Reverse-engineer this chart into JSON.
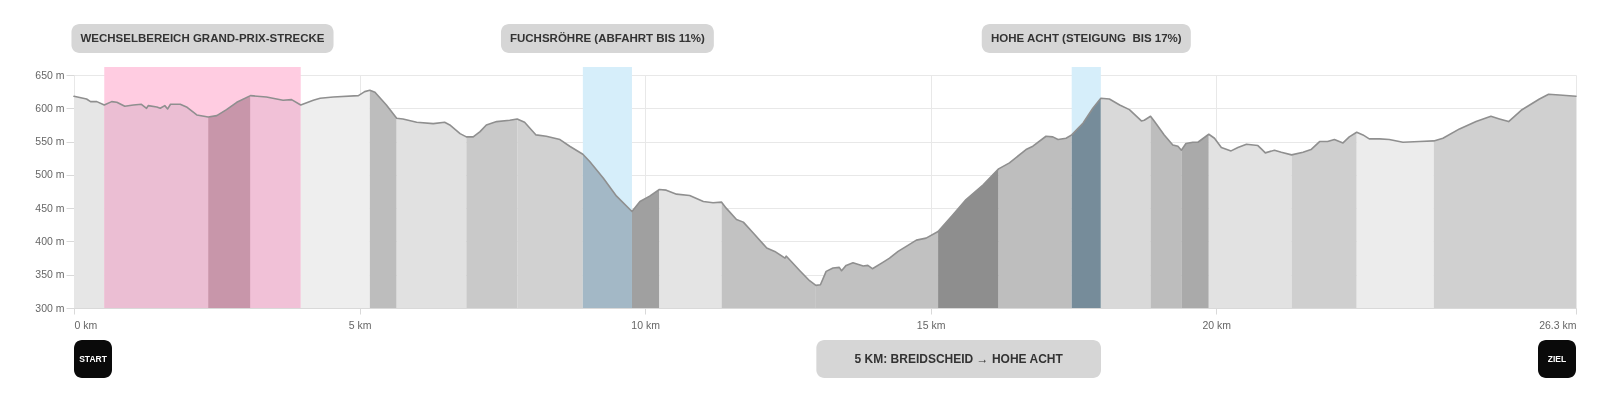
{
  "chart_data": {
    "type": "area",
    "xlim": [
      0,
      26.3
    ],
    "ylim": [
      300,
      650
    ],
    "xticks": [
      {
        "value": 0,
        "label": "0 km"
      },
      {
        "value": 5,
        "label": "5 km"
      },
      {
        "value": 10,
        "label": "10 km"
      },
      {
        "value": 15,
        "label": "15 km"
      },
      {
        "value": 20,
        "label": "20 km"
      },
      {
        "value": 26.3,
        "label": "26.3 km"
      }
    ],
    "yticks": [
      {
        "value": 300,
        "label": "300 m"
      },
      {
        "value": 350,
        "label": "350 m"
      },
      {
        "value": 400,
        "label": "400 m"
      },
      {
        "value": 450,
        "label": "450 m"
      },
      {
        "value": 500,
        "label": "500 m"
      },
      {
        "value": 550,
        "label": "550 m"
      },
      {
        "value": 600,
        "label": "600 m"
      },
      {
        "value": 650,
        "label": "650 m"
      }
    ],
    "grid": true,
    "series": [
      {
        "color": "#e6e6e6",
        "x": [
          0,
          0.22,
          0.29,
          0.4,
          0.53
        ],
        "values": [
          618,
          614,
          610,
          610,
          605
        ]
      },
      {
        "color": "#ebbed3",
        "x": [
          0.53,
          0.66,
          0.75,
          0.89,
          1.04,
          1.18,
          1.27,
          1.3,
          1.45,
          1.51,
          1.59,
          1.64,
          1.69,
          1.86,
          1.97,
          2.15,
          2.35
        ],
        "values": [
          605,
          610,
          609,
          603,
          605,
          606,
          600,
          604,
          602,
          600,
          604,
          599,
          606,
          606,
          602,
          590,
          587
        ]
      },
      {
        "color": "#c896aa",
        "x": [
          2.35,
          2.5,
          2.67,
          2.85,
          3.09
        ],
        "values": [
          587,
          589,
          598,
          609,
          619
        ]
      },
      {
        "color": "#f1c1d7",
        "x": [
          3.09,
          3.37,
          3.66,
          3.81,
          3.97
        ],
        "values": [
          619,
          617,
          612,
          613,
          605
        ]
      },
      {
        "color": "#eeeeee",
        "x": [
          3.97,
          4.19,
          4.31,
          4.54,
          4.98,
          5.09,
          5.18
        ],
        "values": [
          605,
          612,
          615,
          617,
          619,
          625,
          627
        ]
      },
      {
        "color": "#bdbdbd",
        "x": [
          5.18,
          5.27,
          5.47,
          5.65
        ],
        "values": [
          627,
          624,
          605,
          585
        ]
      },
      {
        "color": "#e1e1e1",
        "x": [
          5.65,
          5.76,
          6.0,
          6.29,
          6.49,
          6.58,
          6.76,
          6.87
        ],
        "values": [
          585,
          584,
          579,
          577,
          579,
          575,
          562,
          557
        ]
      },
      {
        "color": "#c9c9c9",
        "x": [
          6.87,
          6.99,
          7.11,
          7.22,
          7.4,
          7.63,
          7.76
        ],
        "values": [
          557,
          557,
          565,
          575,
          580,
          582,
          584
        ]
      },
      {
        "color": "#d1d1d1",
        "x": [
          7.76,
          7.89,
          8.09,
          8.27,
          8.51,
          8.68,
          8.91
        ],
        "values": [
          584,
          579,
          560,
          558,
          553,
          543,
          531
        ]
      },
      {
        "color": "#a3b8c6",
        "x": [
          8.91,
          9.03,
          9.27,
          9.5,
          9.77
        ],
        "values": [
          531,
          520,
          495,
          468,
          445
        ]
      },
      {
        "color": "#a0a0a0",
        "x": [
          9.77,
          9.91,
          10.08,
          10.25
        ],
        "values": [
          445,
          460,
          468,
          478
        ]
      },
      {
        "color": "#e4e4e4",
        "x": [
          10.25,
          10.37,
          10.55,
          10.78,
          11.02,
          11.19,
          11.34
        ],
        "values": [
          478,
          477,
          471,
          469,
          460,
          458,
          459
        ]
      },
      {
        "color": "#c2c2c2",
        "x": [
          11.34,
          11.42,
          11.6,
          11.72,
          11.89,
          12.13,
          12.27,
          12.45,
          12.47,
          12.71,
          12.88,
          12.99
        ],
        "values": [
          459,
          450,
          433,
          429,
          413,
          390,
          385,
          375,
          378,
          356,
          341,
          334
        ]
      },
      {
        "color": "#c1c1c1",
        "x": [
          12.99,
          13.07,
          13.17,
          13.29,
          13.4,
          13.44,
          13.52,
          13.64,
          13.82,
          13.9,
          13.98,
          14.17,
          14.28,
          14.43,
          14.58,
          14.75,
          14.92,
          15.13
        ],
        "values": [
          334,
          335,
          355,
          360,
          361,
          356,
          364,
          368,
          363,
          364,
          359,
          369,
          375,
          385,
          393,
          402,
          405,
          415
        ]
      },
      {
        "color": "#8e8e8e",
        "x": [
          15.13,
          15.39,
          15.62,
          15.92,
          16.19
        ],
        "values": [
          415,
          440,
          463,
          485,
          509
        ]
      },
      {
        "color": "#bebebe",
        "x": [
          16.19,
          16.38,
          16.67,
          16.79,
          17.02,
          17.14,
          17.23,
          17.37,
          17.47
        ],
        "values": [
          509,
          518,
          538,
          543,
          558,
          557,
          553,
          555,
          560
        ]
      },
      {
        "color": "#768c9a",
        "x": [
          17.47,
          17.67,
          17.84,
          17.98
        ],
        "values": [
          560,
          578,
          600,
          615
        ]
      },
      {
        "color": "#d9d9d9",
        "x": [
          17.98,
          18.13,
          18.31,
          18.48,
          18.69,
          18.74,
          18.85
        ],
        "values": [
          615,
          614,
          605,
          598,
          581,
          582,
          588
        ]
      },
      {
        "color": "#bdbdbd",
        "x": [
          18.85,
          18.92,
          19.09,
          19.24,
          19.33,
          19.39
        ],
        "values": [
          588,
          580,
          560,
          545,
          543,
          537
        ]
      },
      {
        "color": "#aaaaaa",
        "x": [
          19.39,
          19.47,
          19.59,
          19.68,
          19.87
        ],
        "values": [
          537,
          547,
          549,
          549,
          561
        ]
      },
      {
        "color": "#e2e2e2",
        "x": [
          19.87,
          19.97,
          20.09,
          20.26,
          20.38,
          20.53,
          20.73,
          20.79,
          20.86,
          21.02,
          21.14,
          21.32
        ],
        "values": [
          561,
          555,
          541,
          536,
          541,
          546,
          544,
          539,
          533,
          537,
          534,
          530
        ]
      },
      {
        "color": "#cfcfcf",
        "x": [
          21.32,
          21.52,
          21.66,
          21.81,
          21.95,
          22.07,
          22.22,
          22.33,
          22.46
        ],
        "values": [
          530,
          534,
          538,
          550,
          550,
          553,
          548,
          557,
          564
        ]
      },
      {
        "color": "#ececec",
        "x": [
          22.46,
          22.57,
          22.68,
          22.86,
          23.03,
          23.27,
          23.56,
          23.81
        ],
        "values": [
          564,
          560,
          554,
          554,
          553,
          549,
          550,
          551
        ]
      },
      {
        "color": "#d0d0d0",
        "x": [
          23.81,
          23.97,
          24.26,
          24.55,
          24.81,
          24.96,
          25.12,
          25.34,
          25.66,
          25.82,
          26.01,
          26.3
        ],
        "values": [
          551,
          555,
          569,
          580,
          588,
          584,
          580,
          597,
          614,
          621,
          620,
          618
        ]
      },
      {
        "type": "line",
        "color": "#8f8f8f",
        "x": [
          0,
          0.22,
          0.29,
          0.4,
          0.53,
          0.66,
          0.75,
          0.89,
          1.04,
          1.18,
          1.27,
          1.3,
          1.45,
          1.51,
          1.59,
          1.64,
          1.69,
          1.86,
          1.97,
          2.15,
          2.35,
          2.5,
          2.67,
          2.85,
          3.09,
          3.37,
          3.66,
          3.81,
          3.97,
          4.19,
          4.31,
          4.54,
          4.98,
          5.09,
          5.18,
          5.27,
          5.47,
          5.65,
          5.76,
          6.0,
          6.29,
          6.49,
          6.58,
          6.76,
          6.87,
          6.99,
          7.11,
          7.22,
          7.4,
          7.63,
          7.76,
          7.89,
          8.09,
          8.27,
          8.51,
          8.68,
          8.91,
          9.03,
          9.27,
          9.5,
          9.77,
          9.91,
          10.08,
          10.25,
          10.37,
          10.55,
          10.78,
          11.02,
          11.19,
          11.34,
          11.42,
          11.6,
          11.72,
          11.89,
          12.13,
          12.27,
          12.45,
          12.47,
          12.71,
          12.88,
          12.99,
          13.07,
          13.17,
          13.29,
          13.4,
          13.44,
          13.52,
          13.64,
          13.82,
          13.9,
          13.98,
          14.17,
          14.28,
          14.43,
          14.58,
          14.75,
          14.92,
          15.13,
          15.39,
          15.62,
          15.92,
          16.19,
          16.38,
          16.67,
          16.79,
          17.02,
          17.14,
          17.23,
          17.37,
          17.47,
          17.67,
          17.84,
          17.98,
          18.13,
          18.31,
          18.48,
          18.69,
          18.74,
          18.85,
          18.92,
          19.09,
          19.24,
          19.33,
          19.39,
          19.47,
          19.59,
          19.68,
          19.87,
          19.97,
          20.09,
          20.26,
          20.38,
          20.53,
          20.73,
          20.79,
          20.86,
          21.02,
          21.14,
          21.32,
          21.52,
          21.66,
          21.81,
          21.95,
          22.07,
          22.22,
          22.33,
          22.46,
          22.57,
          22.68,
          22.86,
          23.03,
          23.27,
          23.56,
          23.81,
          23.97,
          24.26,
          24.55,
          24.81,
          24.96,
          25.12,
          25.34,
          25.66,
          25.82,
          26.01,
          26.3
        ],
        "values": [
          618,
          614,
          610,
          610,
          605,
          610,
          609,
          603,
          605,
          606,
          600,
          604,
          602,
          600,
          604,
          599,
          606,
          606,
          602,
          590,
          587,
          589,
          598,
          609,
          619,
          617,
          612,
          613,
          605,
          612,
          615,
          617,
          619,
          625,
          627,
          624,
          605,
          585,
          584,
          579,
          577,
          579,
          575,
          562,
          557,
          557,
          565,
          575,
          580,
          582,
          584,
          579,
          560,
          558,
          553,
          543,
          531,
          520,
          495,
          468,
          445,
          460,
          468,
          478,
          477,
          471,
          469,
          460,
          458,
          459,
          450,
          433,
          429,
          413,
          390,
          385,
          375,
          378,
          356,
          341,
          334,
          335,
          355,
          360,
          361,
          356,
          364,
          368,
          363,
          364,
          359,
          369,
          375,
          385,
          393,
          402,
          405,
          415,
          440,
          463,
          485,
          509,
          518,
          538,
          543,
          558,
          557,
          553,
          555,
          560,
          578,
          600,
          615,
          614,
          605,
          598,
          581,
          582,
          588,
          580,
          560,
          545,
          543,
          537,
          547,
          549,
          549,
          561,
          555,
          541,
          536,
          541,
          546,
          544,
          539,
          533,
          537,
          534,
          530,
          534,
          538,
          550,
          550,
          553,
          548,
          557,
          564,
          560,
          554,
          554,
          553,
          549,
          550,
          551,
          555,
          569,
          580,
          588,
          584,
          580,
          597,
          614,
          621,
          620,
          618
        ]
      }
    ],
    "bands": [
      {
        "axis": "x",
        "from": 0.53,
        "to": 3.97,
        "label": "WECHSELBEREICH GRAND-PRIX-STRECKE",
        "color": "#ffcce1"
      },
      {
        "axis": "x",
        "from": 8.91,
        "to": 9.77,
        "label": "FUCHSRÖHRE (ABFAHRT BIS 11%)",
        "color": "#d6eefa"
      },
      {
        "axis": "x",
        "from": 17.47,
        "to": 17.98,
        "label": "HOHE ACHT (STEIGUNG  BIS 17%)",
        "color": "#d6eefa"
      }
    ],
    "annotations": [
      "START",
      "5 KM: BREIDSCHEID → HOHE ACHT",
      "ZIEL"
    ]
  }
}
